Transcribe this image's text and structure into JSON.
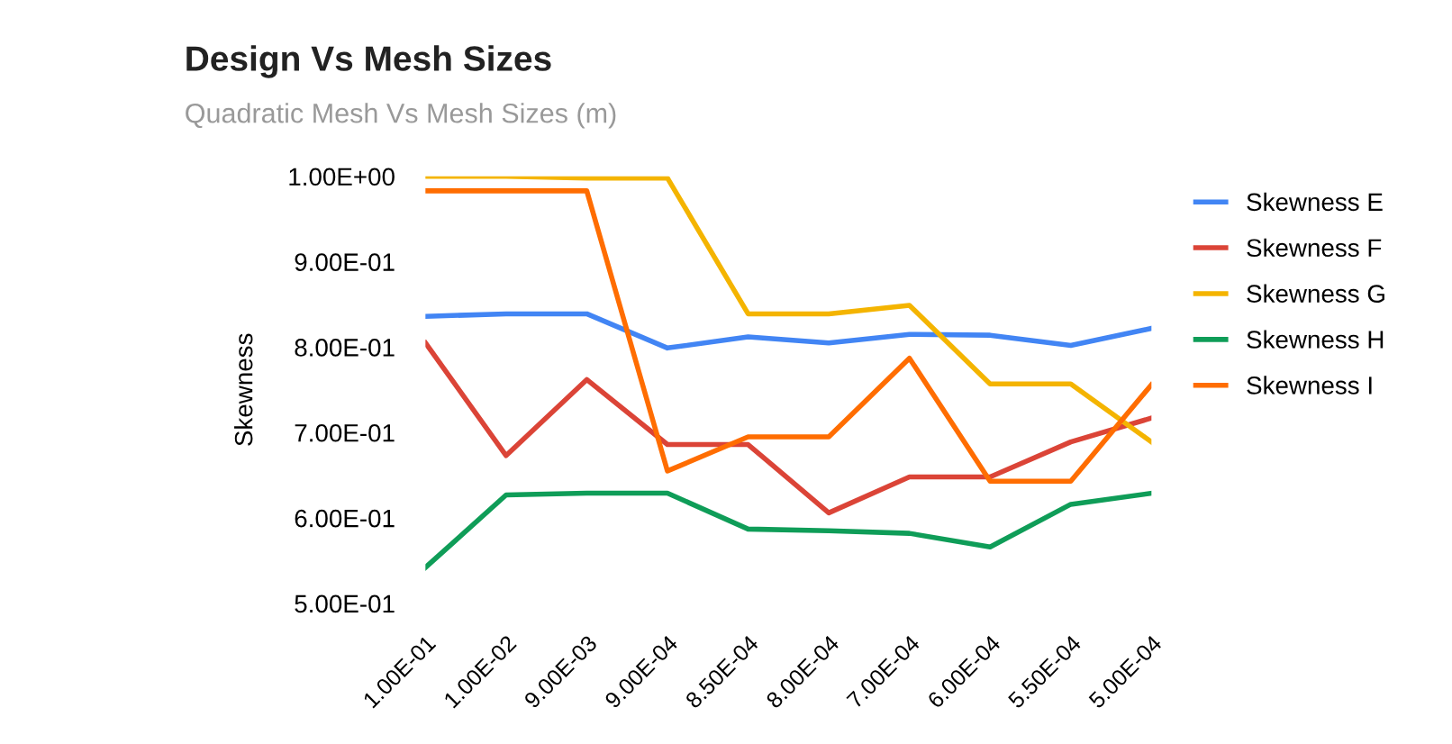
{
  "chart_data": {
    "type": "line",
    "title": "Design Vs Mesh Sizes",
    "subtitle": "Quadratic Mesh Vs Mesh Sizes (m)",
    "ylabel": "Skewness",
    "categories": [
      "1.00E-01",
      "1.00E-02",
      "9.00E-03",
      "9.00E-04",
      "8.50E-04",
      "8.00E-04",
      "7.00E-04",
      "6.00E-04",
      "5.50E-04",
      "5.00E-04"
    ],
    "series": [
      {
        "name": "Skewness E",
        "color": "#4285f4",
        "values": [
          0.836,
          0.839,
          0.839,
          0.799,
          0.812,
          0.805,
          0.815,
          0.814,
          0.802,
          0.822
        ]
      },
      {
        "name": "Skewness F",
        "color": "#db4437",
        "values": [
          0.805,
          0.673,
          0.762,
          0.686,
          0.686,
          0.606,
          0.648,
          0.648,
          0.689,
          0.717
        ]
      },
      {
        "name": "Skewness G",
        "color": "#f4b400",
        "values": [
          1.0,
          1.0,
          0.998,
          0.998,
          0.839,
          0.839,
          0.849,
          0.757,
          0.757,
          0.689
        ]
      },
      {
        "name": "Skewness H",
        "color": "#0f9d58",
        "values": [
          0.542,
          0.627,
          0.629,
          0.629,
          0.587,
          0.585,
          0.582,
          0.566,
          0.616,
          0.629
        ]
      },
      {
        "name": "Skewness I",
        "color": "#ff6d01",
        "values": [
          0.983,
          0.983,
          0.983,
          0.655,
          0.695,
          0.695,
          0.787,
          0.643,
          0.643,
          0.756
        ]
      }
    ],
    "ylim": [
      0.5,
      1.0
    ],
    "yticks": [
      {
        "value": 0.5,
        "label": "5.00E-01"
      },
      {
        "value": 0.6,
        "label": "6.00E-01"
      },
      {
        "value": 0.7,
        "label": "7.00E-01"
      },
      {
        "value": 0.8,
        "label": "8.00E-01"
      },
      {
        "value": 0.9,
        "label": "9.00E-01"
      },
      {
        "value": 1.0,
        "label": "1.00E+00"
      }
    ],
    "grid": false,
    "legend": "right",
    "marker": "none",
    "line_style": "solid"
  }
}
